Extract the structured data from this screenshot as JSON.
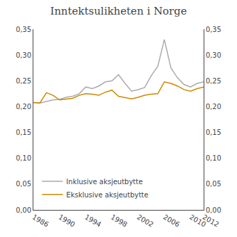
{
  "chart_data": {
    "type": "line",
    "title": "Inntektsulikheten i Norge",
    "x": [
      1986,
      1987,
      1988,
      1989,
      1990,
      1991,
      1992,
      1993,
      1994,
      1995,
      1996,
      1997,
      1998,
      1999,
      2000,
      2001,
      2002,
      2003,
      2004,
      2005,
      2006,
      2007,
      2008,
      2009,
      2010,
      2011,
      2012
    ],
    "series": [
      {
        "name": "Inklusive aksjeutbytte",
        "color": "#aaaaaa",
        "values": [
          0.208,
          0.207,
          0.21,
          0.213,
          0.214,
          0.218,
          0.22,
          0.225,
          0.238,
          0.235,
          0.24,
          0.248,
          0.25,
          0.262,
          0.245,
          0.23,
          0.233,
          0.237,
          0.26,
          0.278,
          0.33,
          0.275,
          0.256,
          0.243,
          0.238,
          0.245,
          0.248
        ]
      },
      {
        "name": "Eksklusive aksjeutbytte",
        "color": "#CC8800",
        "values": [
          0.208,
          0.207,
          0.227,
          0.222,
          0.213,
          0.215,
          0.216,
          0.222,
          0.225,
          0.224,
          0.222,
          0.228,
          0.232,
          0.22,
          0.218,
          0.215,
          0.218,
          0.222,
          0.224,
          0.225,
          0.248,
          0.245,
          0.24,
          0.233,
          0.23,
          0.235,
          0.238
        ]
      }
    ],
    "xlim": [
      1986,
      2012
    ],
    "xticks": [
      1986,
      1990,
      1994,
      1998,
      2002,
      2006,
      2010,
      2012
    ],
    "ylim": [
      0.0,
      0.35
    ],
    "yticks": [
      {
        "value": 0.0,
        "label": "0,00"
      },
      {
        "value": 0.05,
        "label": "0,05"
      },
      {
        "value": 0.1,
        "label": "0,10"
      },
      {
        "value": 0.15,
        "label": "0,15"
      },
      {
        "value": 0.2,
        "label": "0,20"
      },
      {
        "value": 0.25,
        "label": "0,25"
      },
      {
        "value": 0.3,
        "label": "0,30"
      },
      {
        "value": 0.35,
        "label": "0,35"
      }
    ],
    "y2lim": [
      0.0,
      0.35
    ],
    "y2ticks": [
      {
        "value": 0.0,
        "label": "0,00"
      },
      {
        "value": 0.05,
        "label": "0,05"
      },
      {
        "value": 0.1,
        "label": "0,10"
      },
      {
        "value": 0.15,
        "label": "0,15"
      },
      {
        "value": 0.2,
        "label": "0,20"
      },
      {
        "value": 0.25,
        "label": "0,25"
      },
      {
        "value": 0.3,
        "label": "0,30"
      },
      {
        "value": 0.35,
        "label": "0,35"
      }
    ],
    "grid": false,
    "legend": "lower left"
  }
}
